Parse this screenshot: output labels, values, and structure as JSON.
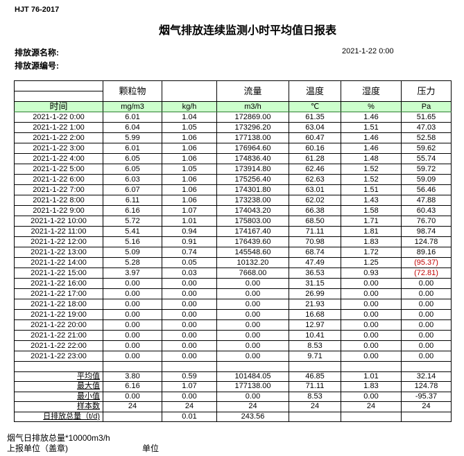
{
  "standard": "HJT  76-2017",
  "title": "烟气排放连续监测小时平均值日报表",
  "source_name_label": "排放源名称:",
  "source_no_label": "排放源编号:",
  "report_date": "2021-1-22 0:00",
  "headers": [
    "",
    "颗粒物",
    "",
    "流量",
    "温度",
    "湿度",
    "压力"
  ],
  "units": [
    "时间",
    "mg/m3",
    "kg/h",
    "m3/h",
    "℃",
    "%",
    "Pa"
  ],
  "rows": [
    [
      "2021-1-22 0:00",
      "6.01",
      "1.04",
      "172869.00",
      "61.35",
      "1.46",
      "51.65"
    ],
    [
      "2021-1-22 1:00",
      "6.04",
      "1.05",
      "173296.20",
      "63.04",
      "1.51",
      "47.03"
    ],
    [
      "2021-1-22 2:00",
      "5.99",
      "1.06",
      "177138.00",
      "60.47",
      "1.46",
      "52.58"
    ],
    [
      "2021-1-22 3:00",
      "6.01",
      "1.06",
      "176964.60",
      "60.16",
      "1.46",
      "59.62"
    ],
    [
      "2021-1-22 4:00",
      "6.05",
      "1.06",
      "174836.40",
      "61.28",
      "1.48",
      "55.74"
    ],
    [
      "2021-1-22 5:00",
      "6.05",
      "1.05",
      "173914.80",
      "62.46",
      "1.52",
      "59.72"
    ],
    [
      "2021-1-22 6:00",
      "6.03",
      "1.06",
      "175256.40",
      "62.63",
      "1.52",
      "59.09"
    ],
    [
      "2021-1-22 7:00",
      "6.07",
      "1.06",
      "174301.80",
      "63.01",
      "1.51",
      "56.46"
    ],
    [
      "2021-1-22 8:00",
      "6.11",
      "1.06",
      "173238.00",
      "62.02",
      "1.43",
      "47.88"
    ],
    [
      "2021-1-22 9:00",
      "6.16",
      "1.07",
      "174043.20",
      "66.38",
      "1.58",
      "60.43"
    ],
    [
      "2021-1-22 10:00",
      "5.72",
      "1.01",
      "175803.00",
      "68.50",
      "1.71",
      "76.70"
    ],
    [
      "2021-1-22 11:00",
      "5.41",
      "0.94",
      "174167.40",
      "71.11",
      "1.81",
      "98.74"
    ],
    [
      "2021-1-22 12:00",
      "5.16",
      "0.91",
      "176439.60",
      "70.98",
      "1.83",
      "124.78"
    ],
    [
      "2021-1-22 13:00",
      "5.09",
      "0.74",
      "145548.60",
      "68.74",
      "1.72",
      "89.16"
    ],
    [
      "2021-1-22 14:00",
      "5.28",
      "0.05",
      "10132.20",
      "47.49",
      "1.25",
      "(95.37)"
    ],
    [
      "2021-1-22 15:00",
      "3.97",
      "0.03",
      "7668.00",
      "36.53",
      "0.93",
      "(72.81)"
    ],
    [
      "2021-1-22 16:00",
      "0.00",
      "0.00",
      "0.00",
      "31.15",
      "0.00",
      "0.00"
    ],
    [
      "2021-1-22 17:00",
      "0.00",
      "0.00",
      "0.00",
      "26.99",
      "0.00",
      "0.00"
    ],
    [
      "2021-1-22 18:00",
      "0.00",
      "0.00",
      "0.00",
      "21.93",
      "0.00",
      "0.00"
    ],
    [
      "2021-1-22 19:00",
      "0.00",
      "0.00",
      "0.00",
      "16.68",
      "0.00",
      "0.00"
    ],
    [
      "2021-1-22 20:00",
      "0.00",
      "0.00",
      "0.00",
      "12.97",
      "0.00",
      "0.00"
    ],
    [
      "2021-1-22 21:00",
      "0.00",
      "0.00",
      "0.00",
      "10.41",
      "0.00",
      "0.00"
    ],
    [
      "2021-1-22 22:00",
      "0.00",
      "0.00",
      "0.00",
      "8.53",
      "0.00",
      "0.00"
    ],
    [
      "2021-1-22 23:00",
      "0.00",
      "0.00",
      "0.00",
      "9.71",
      "0.00",
      "0.00"
    ]
  ],
  "summary": [
    [
      "",
      "",
      "",
      "",
      "",
      "",
      ""
    ],
    [
      "平均值",
      "3.80",
      "0.59",
      "101484.05",
      "46.85",
      "1.01",
      "32.14"
    ],
    [
      "最大值",
      "6.16",
      "1.07",
      "177138.00",
      "71.11",
      "1.83",
      "124.78"
    ],
    [
      "最小值",
      "0.00",
      "0.00",
      "0.00",
      "8.53",
      "0.00",
      "-95.37"
    ],
    [
      "样本数",
      "24",
      "24",
      "24",
      "24",
      "24",
      "24"
    ]
  ],
  "daily_total": [
    "日排放总量（t/d)",
    "",
    "0.01",
    "243.56",
    "",
    "",
    ""
  ],
  "negative_color": "#c00000",
  "unit_row_color": "#ccffcc",
  "footer": {
    "note": "烟气日排放总量*10000m3/h",
    "report_unit": "上报单位（盖章)",
    "unit": "单位"
  }
}
